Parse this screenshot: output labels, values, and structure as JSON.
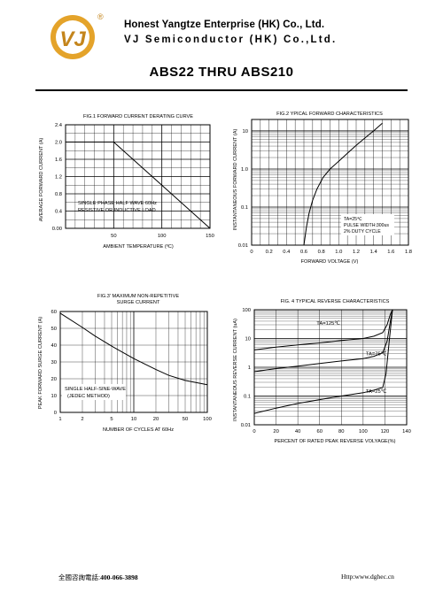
{
  "header": {
    "company_line1": "Honest Yangtze Enterprise (HK) Co., Ltd.",
    "company_line2": "VJ Semiconductor (HK) Co.,Ltd.",
    "logo_mark": "VJ",
    "registered_mark": "®"
  },
  "title": "ABS22 THRU ABS210",
  "footer": {
    "hotline_label": "全國咨詢電話:",
    "hotline_number": "400-066-3898",
    "website": "Http:www.dghec.cn"
  },
  "chart_data": [
    {
      "type": "line",
      "title": "FIG.1 FORWARD CURRENT DERATING CURVE",
      "xlabel": "AMBIENT TEMPERATURE (ºC)",
      "ylabel": "AVERAGE FORWARD CURRENT (A)",
      "xlim": [
        0,
        150
      ],
      "ylim": [
        0,
        2.4
      ],
      "x_ticks": [
        "50",
        "100",
        "150"
      ],
      "y_ticks": [
        "0.00",
        "0.4",
        "0.8",
        "1.2",
        "1.6",
        "2.0",
        "2.4"
      ],
      "annotations": [
        "SINGLE PHASE HALF WAVE 60Hz",
        "RESISTIVE OR INDUCTIVE LOAD"
      ],
      "series": [
        {
          "x": [
            0,
            50,
            150
          ],
          "y": [
            2.0,
            2.0,
            0.0
          ]
        }
      ],
      "grid": true
    },
    {
      "type": "line",
      "title": "FIG.2 YPICAL FORWARD CHARACTERISTICS",
      "xlabel": "FORWARD VOLTAGE (V)",
      "ylabel": "INSTANTANEOUS FORWARD CURRENT (A)",
      "xlim": [
        0,
        1.8
      ],
      "ylim": [
        0.01,
        20
      ],
      "yscale": "log",
      "x_ticks": [
        "0",
        "0.2",
        "0.4",
        "0.6",
        "0.8",
        "1.0",
        "1.2",
        "1.4",
        "1.6",
        "1.8"
      ],
      "y_ticks": [
        "0.01",
        "0.1",
        "1.0",
        "10"
      ],
      "annotations": [
        "TA=25℃",
        "PULSE WIDTH:300us",
        "2% DUTY CYCLE"
      ],
      "series": [
        {
          "x": [
            0.6,
            0.63,
            0.66,
            0.7,
            0.75,
            0.82,
            0.9,
            1.0,
            1.1,
            1.2,
            1.3,
            1.4,
            1.5
          ],
          "y": [
            0.01,
            0.03,
            0.07,
            0.15,
            0.3,
            0.6,
            1.0,
            1.6,
            2.6,
            4.2,
            6.5,
            10,
            16
          ]
        }
      ],
      "grid": true
    },
    {
      "type": "line",
      "title": "FIG.3' MAXIMUM NON-REPETITIVE SURGE CURRENT",
      "xlabel": "NUMBER OF CYCLES AT 60Hz",
      "ylabel": "PEAK FORWARD SURGE CURRENT (A)",
      "xlim": [
        1,
        100
      ],
      "ylim": [
        0,
        60
      ],
      "xscale": "log",
      "x_ticks": [
        "1",
        "2",
        "5",
        "10",
        "20",
        "50",
        "100"
      ],
      "y_ticks": [
        "0",
        "10",
        "20",
        "30",
        "40",
        "50",
        "60"
      ],
      "annotations": [
        "SINGLE HALF-SINE-WAVE",
        "(JEDEC METHOD)"
      ],
      "series": [
        {
          "x": [
            1,
            2,
            3,
            5,
            10,
            20,
            30,
            50,
            100
          ],
          "y": [
            59,
            50.5,
            45.3,
            39.4,
            32,
            25.5,
            22,
            19,
            16.5
          ]
        }
      ],
      "grid": true
    },
    {
      "type": "line",
      "title": "FIG. 4 TYPICAL REVERSE CHARACTERISTICS",
      "xlabel": "PERCENT OF RATED PEAK REVERSE VOLYAGE(%)",
      "ylabel": "INSTANTANEOUS REVERSE CURRENT (uA)",
      "xlim": [
        0,
        140
      ],
      "ylim": [
        0.01,
        100
      ],
      "yscale": "log",
      "x_ticks": [
        "0",
        "20",
        "40",
        "60",
        "80",
        "100",
        "120",
        "140"
      ],
      "y_ticks": [
        "0.01",
        "0.1",
        "1",
        "10",
        "100"
      ],
      "series": [
        {
          "name": "TA=125℃",
          "x": [
            0,
            20,
            40,
            60,
            80,
            100,
            110,
            118,
            122,
            125,
            127
          ],
          "y": [
            4,
            5,
            6,
            7,
            8.5,
            10,
            12,
            16,
            30,
            70,
            110
          ]
        },
        {
          "name": "TA=75℃",
          "x": [
            0,
            20,
            40,
            60,
            80,
            100,
            110,
            118,
            122,
            125,
            127
          ],
          "y": [
            0.7,
            0.9,
            1.1,
            1.35,
            1.65,
            2.0,
            2.4,
            3.2,
            8,
            40,
            110
          ]
        },
        {
          "name": "TA=25℃",
          "x": [
            0,
            20,
            40,
            60,
            80,
            100,
            110,
            118,
            121,
            124,
            127
          ],
          "y": [
            0.025,
            0.038,
            0.055,
            0.075,
            0.1,
            0.13,
            0.16,
            0.2,
            0.6,
            8,
            110
          ]
        }
      ],
      "grid": true
    }
  ]
}
